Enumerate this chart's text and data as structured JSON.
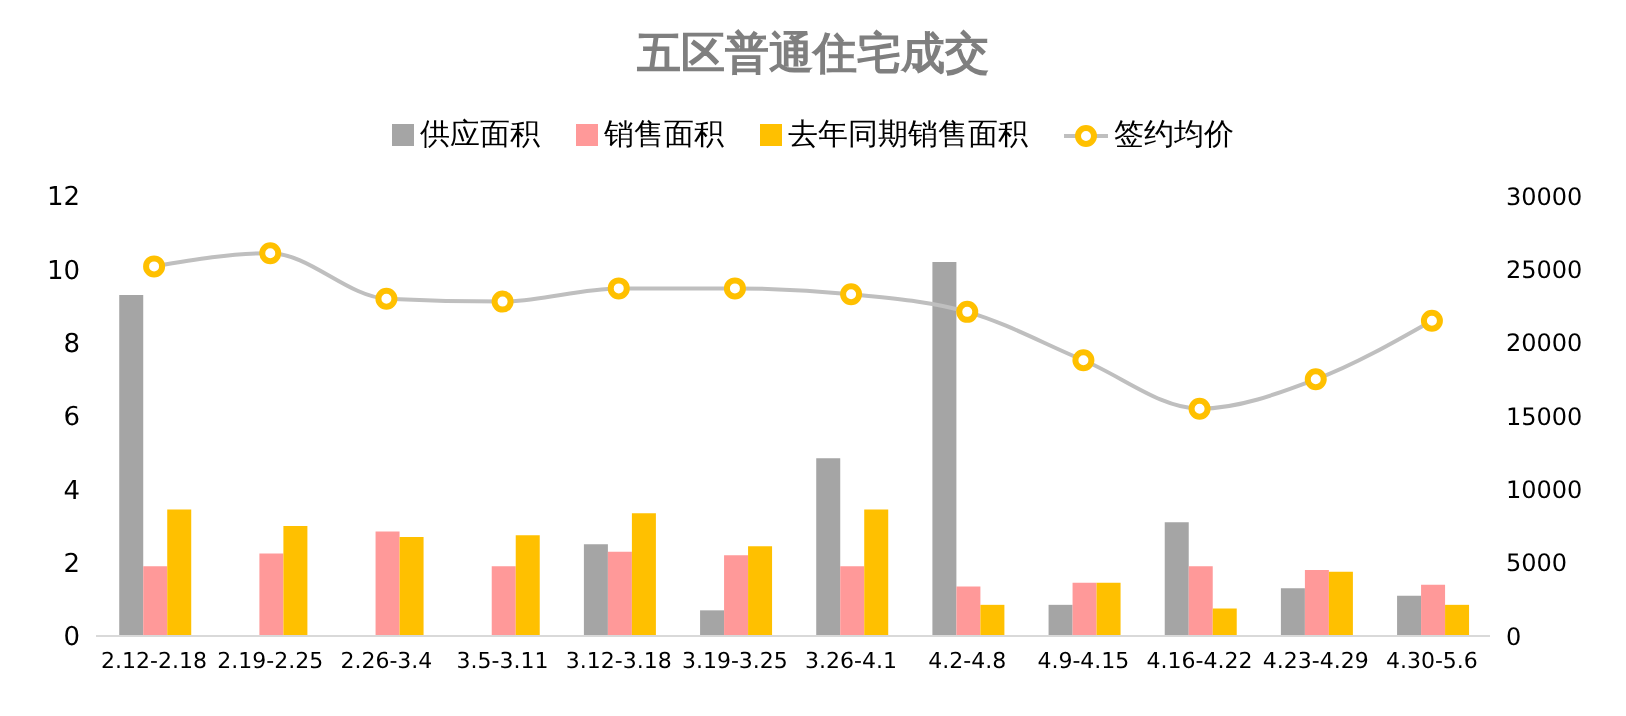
{
  "chart_data": {
    "type": "bar",
    "title": "五区普通住宅成交",
    "categories": [
      "2.12-2.18",
      "2.19-2.25",
      "2.26-3.4",
      "3.5-3.11",
      "3.12-3.18",
      "3.19-3.25",
      "3.26-4.1",
      "4.2-4.8",
      "4.9-4.15",
      "4.16-4.22",
      "4.23-4.29",
      "4.30-5.6"
    ],
    "series": [
      {
        "name": "供应面积",
        "color": "#a5a5a5",
        "values": [
          9.3,
          null,
          null,
          null,
          2.5,
          0.7,
          4.85,
          10.2,
          0.85,
          3.1,
          1.3,
          1.1
        ]
      },
      {
        "name": "销售面积",
        "color": "#ff9999",
        "values": [
          1.9,
          2.25,
          2.85,
          1.9,
          2.3,
          2.2,
          1.9,
          1.35,
          1.45,
          1.9,
          1.8,
          1.4
        ]
      },
      {
        "name": "去年同期销售面积",
        "color": "#ffc000",
        "values": [
          3.45,
          3.0,
          2.7,
          2.75,
          3.35,
          2.45,
          3.45,
          0.85,
          1.45,
          0.75,
          1.75,
          0.85
        ]
      },
      {
        "name": "签约均价",
        "type": "line",
        "axis": "y2",
        "color": "#ffc000",
        "values": [
          25200,
          26100,
          23000,
          22800,
          23700,
          23700,
          23300,
          22100,
          18800,
          15500,
          17500,
          21500
        ]
      }
    ],
    "ylim": [
      0,
      12
    ],
    "yticks": [
      0,
      2,
      4,
      6,
      8,
      10,
      12
    ],
    "y2lim": [
      0,
      30000
    ],
    "y2ticks": [
      0,
      5000,
      10000,
      15000,
      20000,
      25000,
      30000
    ],
    "grid": false,
    "legend": "top",
    "marker": "circle"
  }
}
